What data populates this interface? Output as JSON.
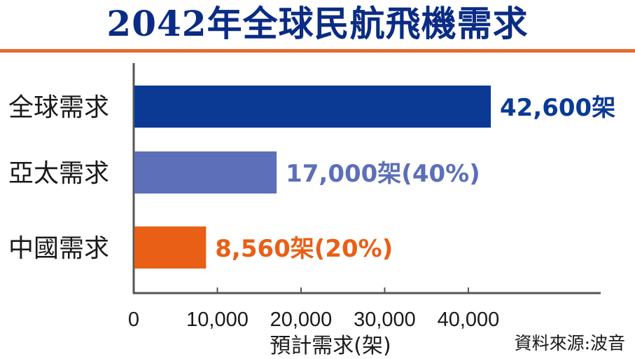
{
  "title": "2042年全球民航飛機需求",
  "source": "資料來源:波音",
  "colors": {
    "title": "#0b2c84",
    "title_rule": "#ec6a2c",
    "axis": "#555555"
  },
  "chart_data": {
    "type": "bar",
    "orientation": "horizontal",
    "categories": [
      "全球需求",
      "亞太需求",
      "中國需求"
    ],
    "values": [
      42600,
      17000,
      8560
    ],
    "value_labels": [
      "42,600架",
      "17,000架(40%)",
      "8,560架(20%)"
    ],
    "bar_colors": [
      "#0b3a95",
      "#5d6fb8",
      "#ea5f16"
    ],
    "xlabel": "預計需求(架)",
    "ylabel": "",
    "xlim": [
      0,
      56000
    ],
    "xticks": [
      0,
      10000,
      20000,
      30000,
      40000
    ],
    "xtick_labels": [
      "0",
      "10,000",
      "20,000",
      "30,000",
      "40,000"
    ],
    "grid": false,
    "legend": "none"
  }
}
